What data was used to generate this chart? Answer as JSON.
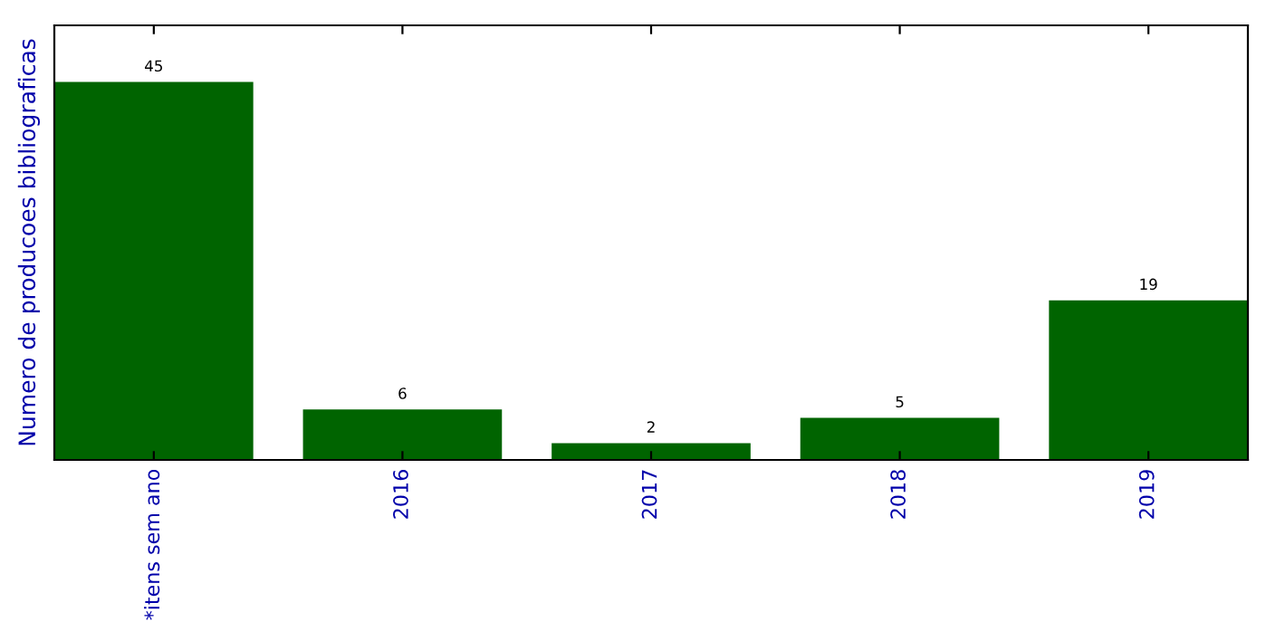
{
  "chart_data": {
    "type": "bar",
    "ylabel": "Numero de producoes bibliograficas",
    "categories": [
      "*itens sem ano",
      "2016",
      "2017",
      "2018",
      "2019"
    ],
    "values": [
      45,
      6,
      2,
      5,
      19
    ],
    "color": "#006400",
    "data_labels": true,
    "tick_labels": "x",
    "grid": false,
    "legend": false
  }
}
